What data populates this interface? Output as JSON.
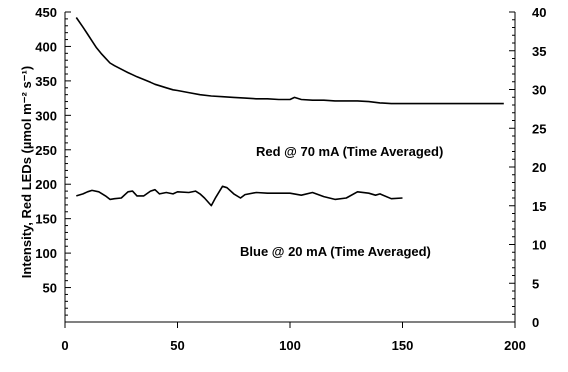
{
  "chart_data": {
    "type": "line",
    "title": "",
    "xlabel": "",
    "ylabel": "Intensity, Red LEDs (µmol m⁻² s⁻¹)",
    "y2label": "",
    "xlim": [
      0,
      200
    ],
    "ylim": [
      0,
      450
    ],
    "y2lim": [
      0,
      40
    ],
    "x_ticks": [
      0,
      50,
      100,
      150,
      200
    ],
    "y_ticks": [
      50,
      100,
      150,
      200,
      250,
      300,
      350,
      400,
      450
    ],
    "y2_ticks": [
      0,
      5,
      10,
      15,
      20,
      25,
      30,
      35,
      40
    ],
    "grid": false,
    "legend": "none",
    "annotations": [
      {
        "text": "Red @ 70 mA (Time Averaged)"
      },
      {
        "text": "Blue @ 20 mA (Time Averaged)"
      }
    ],
    "series": [
      {
        "axis": "left",
        "color": "#000000",
        "x": [
          5,
          8,
          10,
          12,
          14,
          16,
          18,
          20,
          22,
          25,
          28,
          30,
          32,
          35,
          38,
          40,
          42,
          45,
          48,
          50,
          55,
          60,
          65,
          70,
          75,
          80,
          85,
          90,
          95,
          100,
          102,
          105,
          110,
          115,
          120,
          125,
          130,
          135,
          140,
          145,
          150,
          155,
          160,
          170,
          180,
          190,
          195
        ],
        "y": [
          442,
          428,
          418,
          408,
          398,
          390,
          383,
          376,
          372,
          367,
          362,
          359,
          356,
          352,
          348,
          345,
          343,
          340,
          337,
          336,
          333,
          330,
          328,
          327,
          326,
          325,
          324,
          324,
          323,
          323,
          326,
          323,
          322,
          322,
          321,
          321,
          321,
          320,
          318,
          317,
          317,
          317,
          317,
          317,
          317,
          317,
          317
        ]
      },
      {
        "axis": "left",
        "color": "#000000",
        "x": [
          5,
          8,
          10,
          12,
          15,
          18,
          20,
          22,
          25,
          28,
          30,
          32,
          35,
          38,
          40,
          42,
          45,
          48,
          50,
          55,
          58,
          60,
          62,
          65,
          67,
          70,
          72,
          75,
          78,
          80,
          85,
          90,
          95,
          100,
          105,
          110,
          115,
          120,
          125,
          130,
          135,
          138,
          140,
          145,
          150
        ],
        "y": [
          183,
          186,
          189,
          191,
          189,
          183,
          178,
          179,
          180,
          189,
          190,
          183,
          183,
          190,
          192,
          186,
          188,
          186,
          189,
          188,
          190,
          186,
          180,
          169,
          181,
          197,
          195,
          186,
          180,
          185,
          188,
          187,
          187,
          187,
          184,
          188,
          182,
          178,
          180,
          189,
          187,
          184,
          186,
          179,
          180
        ]
      }
    ]
  }
}
